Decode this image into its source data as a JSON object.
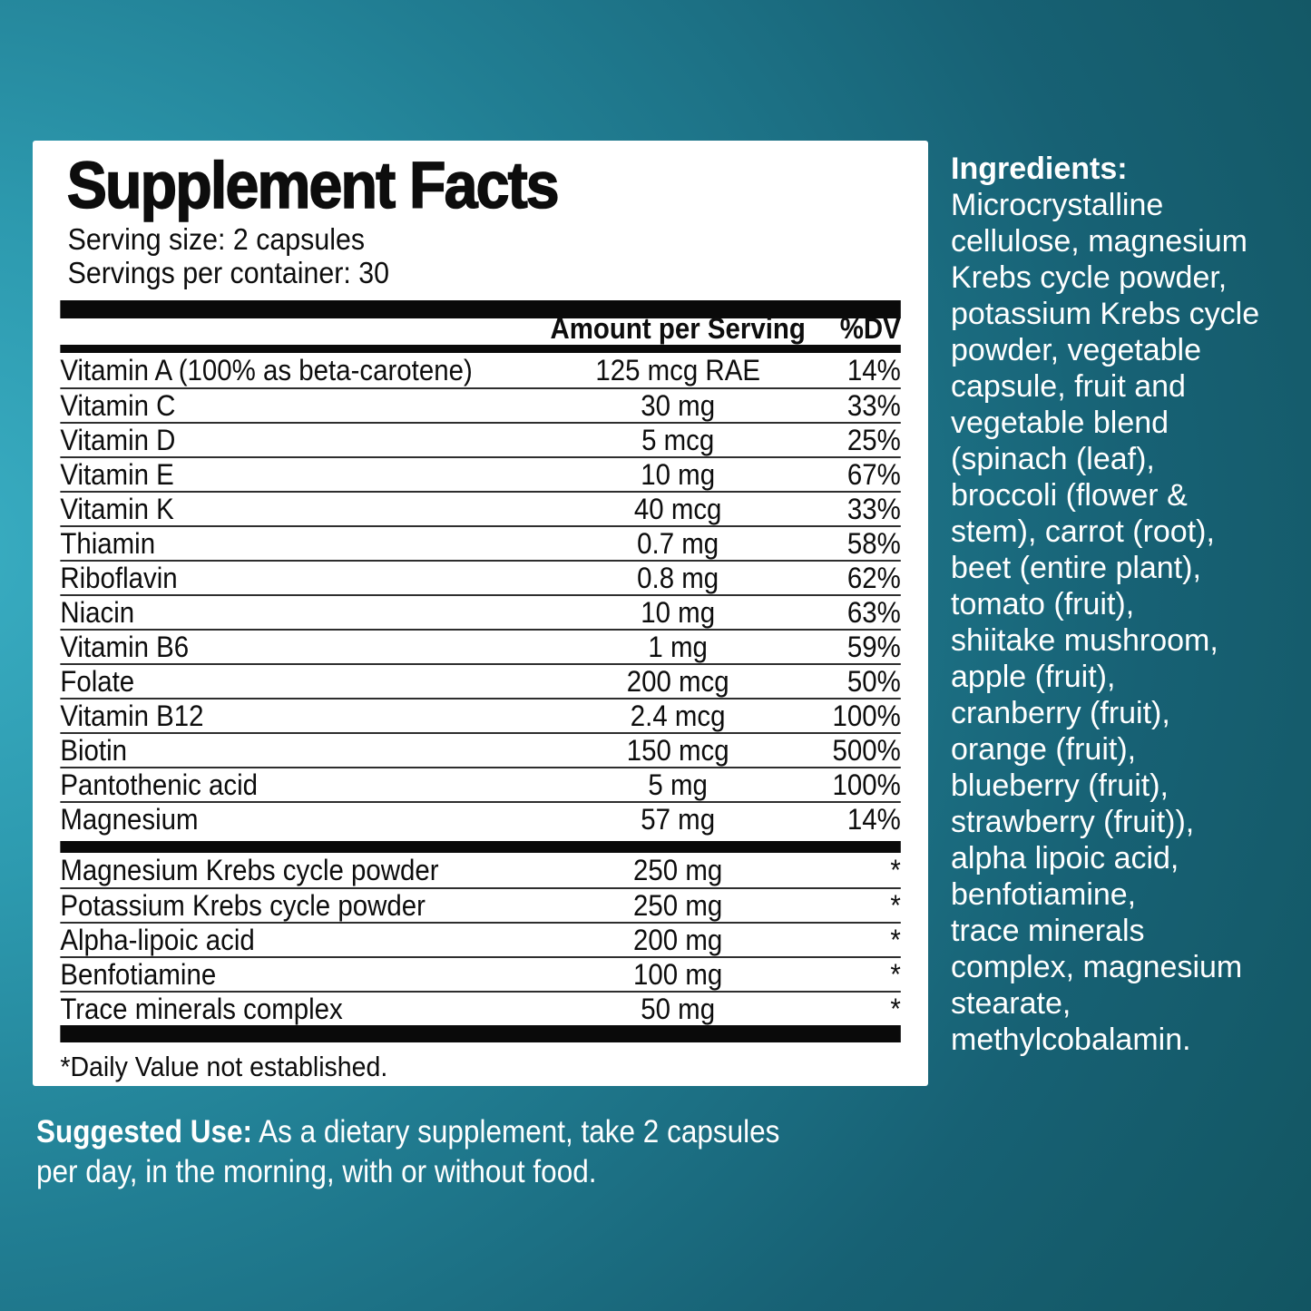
{
  "panel": {
    "title": "Supplement Facts",
    "serving_size": "Serving size: 2 capsules",
    "servings_per_container": "Servings per container: 30",
    "columns": {
      "amount": "Amount per Serving",
      "dv": "%DV"
    },
    "rows": [
      {
        "name": "Vitamin A (100% as beta-carotene)",
        "amount": "125 mcg RAE",
        "dv": "14%"
      },
      {
        "name": "Vitamin C",
        "amount": "30 mg",
        "dv": "33%"
      },
      {
        "name": "Vitamin D",
        "amount": "5 mcg",
        "dv": "25%"
      },
      {
        "name": "Vitamin E",
        "amount": "10 mg",
        "dv": "67%"
      },
      {
        "name": "Vitamin K",
        "amount": "40 mcg",
        "dv": "33%"
      },
      {
        "name": "Thiamin",
        "amount": "0.7 mg",
        "dv": "58%"
      },
      {
        "name": "Riboflavin",
        "amount": "0.8 mg",
        "dv": "62%"
      },
      {
        "name": "Niacin",
        "amount": "10 mg",
        "dv": "63%"
      },
      {
        "name": "Vitamin B6",
        "amount": "1 mg",
        "dv": "59%"
      },
      {
        "name": "Folate",
        "amount": "200 mcg",
        "dv": "50%"
      },
      {
        "name": "Vitamin B12",
        "amount": "2.4 mcg",
        "dv": "100%"
      },
      {
        "name": "Biotin",
        "amount": "150 mcg",
        "dv": "500%"
      },
      {
        "name": "Pantothenic acid",
        "amount": "5 mg",
        "dv": "100%"
      },
      {
        "name": "Magnesium",
        "amount": "57 mg",
        "dv": "14%"
      }
    ],
    "blend_rows": [
      {
        "name": "Magnesium Krebs cycle powder",
        "amount": "250 mg",
        "dv": "*"
      },
      {
        "name": "Potassium Krebs cycle powder",
        "amount": "250 mg",
        "dv": "*"
      },
      {
        "name": "Alpha-lipoic acid",
        "amount": "200 mg",
        "dv": "*"
      },
      {
        "name": "Benfotiamine",
        "amount": "100 mg",
        "dv": "*"
      },
      {
        "name": "Trace minerals complex",
        "amount": "50 mg",
        "dv": "*"
      }
    ],
    "footnote": "*Daily Value not established."
  },
  "ingredients": {
    "heading": "Ingredients:",
    "text": "Microcrystalline\ncellulose, magnesium\nKrebs cycle powder,\npotassium Krebs cycle\npowder, vegetable\ncapsule, fruit and\nvegetable blend\n(spinach (leaf),\nbroccoli (flower &\nstem), carrot (root),\nbeet (entire plant),\ntomato (fruit),\nshiitake mushroom,\napple (fruit),\ncranberry (fruit),\norange (fruit),\nblueberry (fruit),\nstrawberry (fruit)),\nalpha lipoic acid,\nbenfotiamine,\ntrace minerals\ncomplex, magnesium\nstearate,\nmethylcobalamin."
  },
  "suggested_use": {
    "label": "Suggested Use:",
    "line1": "As a dietary supplement, take 2 capsules",
    "line2": "per day, in the morning, with or without food."
  },
  "colors": {
    "background_teal_light": "#3aaec3",
    "background_teal_dark": "#115260",
    "panel_background": "#ffffff",
    "panel_text": "#0d0d0d",
    "overlay_text": "#ffffff"
  }
}
